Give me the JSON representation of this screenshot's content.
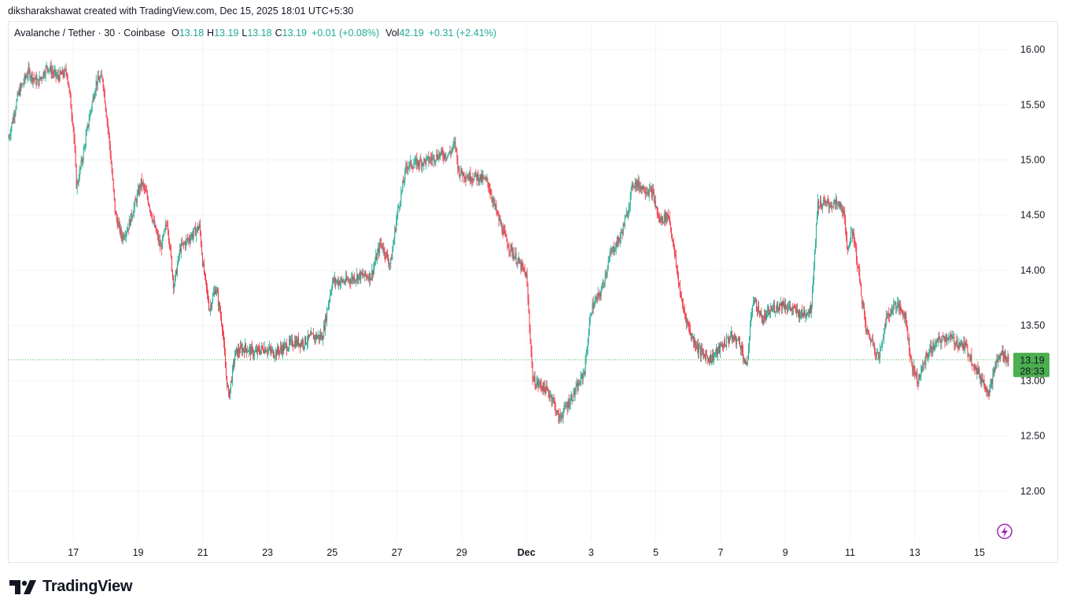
{
  "caption": "diksharakshawat created with TradingView.com, Dec 15, 2025 18:01 UTC+5:30",
  "legend": {
    "symbol": "Avalanche / Tether · 30 · Coinbase",
    "o_label": "O",
    "o": "13.18",
    "h_label": "H",
    "h": "13.19",
    "l_label": "L",
    "l": "13.18",
    "c_label": "C",
    "c": "13.19",
    "change": "+0.01 (+0.08%)",
    "vol_label": "Vol",
    "vol": "42.19",
    "vol_change": "+0.31 (+2.41%)"
  },
  "price_badge": {
    "price": "13.19",
    "countdown": "28:33",
    "color": "#4caf50"
  },
  "brand": {
    "name": "TradingView",
    "icon": "tradingview-logo-icon"
  },
  "colors": {
    "up": "#22ab94",
    "down": "#f23645",
    "grid": "#f0f3fa",
    "last_price_line": "#4caf50"
  },
  "chart_data": {
    "type": "candlestick",
    "title": "Avalanche / Tether · 30 · Coinbase",
    "y_ticks": [
      "16.00",
      "15.50",
      "15.00",
      "14.50",
      "14.00",
      "13.50",
      "13.00",
      "12.50",
      "12.00"
    ],
    "ylim": [
      11.55,
      16.25
    ],
    "x_ticks": [
      "17",
      "19",
      "21",
      "23",
      "25",
      "27",
      "29",
      "Dec",
      "3",
      "5",
      "7",
      "9",
      "11",
      "13",
      "15"
    ],
    "x_tick_days": [
      17,
      19,
      21,
      23,
      25,
      27,
      29,
      31,
      33,
      35,
      37,
      39,
      41,
      43,
      45
    ],
    "xlim": [
      15.0,
      45.9
    ],
    "last_price": 13.19,
    "price_path": [
      [
        15.0,
        15.2
      ],
      [
        15.3,
        15.6
      ],
      [
        15.6,
        15.8
      ],
      [
        15.9,
        15.7
      ],
      [
        16.2,
        15.85
      ],
      [
        16.5,
        15.75
      ],
      [
        16.8,
        15.8
      ],
      [
        17.0,
        15.3
      ],
      [
        17.1,
        14.75
      ],
      [
        17.3,
        15.05
      ],
      [
        17.5,
        15.4
      ],
      [
        17.7,
        15.7
      ],
      [
        17.9,
        15.75
      ],
      [
        18.1,
        15.2
      ],
      [
        18.3,
        14.5
      ],
      [
        18.5,
        14.3
      ],
      [
        18.7,
        14.4
      ],
      [
        18.9,
        14.6
      ],
      [
        19.1,
        14.8
      ],
      [
        19.3,
        14.65
      ],
      [
        19.5,
        14.4
      ],
      [
        19.7,
        14.2
      ],
      [
        19.9,
        14.45
      ],
      [
        20.1,
        13.85
      ],
      [
        20.3,
        14.2
      ],
      [
        20.6,
        14.3
      ],
      [
        20.9,
        14.4
      ],
      [
        21.0,
        14.05
      ],
      [
        21.2,
        13.65
      ],
      [
        21.4,
        13.85
      ],
      [
        21.6,
        13.5
      ],
      [
        21.7,
        13.1
      ],
      [
        21.8,
        12.85
      ],
      [
        22.0,
        13.25
      ],
      [
        22.3,
        13.3
      ],
      [
        22.6,
        13.25
      ],
      [
        22.9,
        13.3
      ],
      [
        23.2,
        13.25
      ],
      [
        23.5,
        13.3
      ],
      [
        23.8,
        13.35
      ],
      [
        24.1,
        13.35
      ],
      [
        24.4,
        13.4
      ],
      [
        24.7,
        13.4
      ],
      [
        25.0,
        13.9
      ],
      [
        25.4,
        13.9
      ],
      [
        25.8,
        13.95
      ],
      [
        26.2,
        13.95
      ],
      [
        26.5,
        14.25
      ],
      [
        26.8,
        14.05
      ],
      [
        27.0,
        14.5
      ],
      [
        27.3,
        14.95
      ],
      [
        27.6,
        14.97
      ],
      [
        28.0,
        15.0
      ],
      [
        28.3,
        15.05
      ],
      [
        28.6,
        15.05
      ],
      [
        28.8,
        15.15
      ],
      [
        28.9,
        14.9
      ],
      [
        29.2,
        14.85
      ],
      [
        29.5,
        14.85
      ],
      [
        29.8,
        14.8
      ],
      [
        30.1,
        14.5
      ],
      [
        30.4,
        14.25
      ],
      [
        30.7,
        14.1
      ],
      [
        31.0,
        13.95
      ],
      [
        31.2,
        13.0
      ],
      [
        31.5,
        12.95
      ],
      [
        31.8,
        12.85
      ],
      [
        32.0,
        12.65
      ],
      [
        32.3,
        12.8
      ],
      [
        32.6,
        12.95
      ],
      [
        32.8,
        13.1
      ],
      [
        33.0,
        13.65
      ],
      [
        33.3,
        13.8
      ],
      [
        33.6,
        14.15
      ],
      [
        33.9,
        14.3
      ],
      [
        34.1,
        14.5
      ],
      [
        34.3,
        14.8
      ],
      [
        34.6,
        14.75
      ],
      [
        34.9,
        14.7
      ],
      [
        35.1,
        14.45
      ],
      [
        35.4,
        14.5
      ],
      [
        35.6,
        14.1
      ],
      [
        35.8,
        13.7
      ],
      [
        36.1,
        13.4
      ],
      [
        36.4,
        13.25
      ],
      [
        36.7,
        13.2
      ],
      [
        37.0,
        13.3
      ],
      [
        37.3,
        13.4
      ],
      [
        37.6,
        13.35
      ],
      [
        37.8,
        13.1
      ],
      [
        38.0,
        13.75
      ],
      [
        38.3,
        13.55
      ],
      [
        38.6,
        13.65
      ],
      [
        38.9,
        13.7
      ],
      [
        39.2,
        13.65
      ],
      [
        39.5,
        13.6
      ],
      [
        39.8,
        13.65
      ],
      [
        40.0,
        14.6
      ],
      [
        40.3,
        14.6
      ],
      [
        40.6,
        14.6
      ],
      [
        40.8,
        14.55
      ],
      [
        40.9,
        14.2
      ],
      [
        41.1,
        14.35
      ],
      [
        41.3,
        13.9
      ],
      [
        41.5,
        13.45
      ],
      [
        41.7,
        13.35
      ],
      [
        41.9,
        13.2
      ],
      [
        42.1,
        13.55
      ],
      [
        42.4,
        13.7
      ],
      [
        42.7,
        13.6
      ],
      [
        42.9,
        13.15
      ],
      [
        43.1,
        13.0
      ],
      [
        43.4,
        13.25
      ],
      [
        43.7,
        13.35
      ],
      [
        44.0,
        13.4
      ],
      [
        44.3,
        13.35
      ],
      [
        44.6,
        13.3
      ],
      [
        44.9,
        13.1
      ],
      [
        45.1,
        13.0
      ],
      [
        45.3,
        12.9
      ],
      [
        45.5,
        13.15
      ],
      [
        45.7,
        13.25
      ],
      [
        45.9,
        13.19
      ]
    ]
  }
}
